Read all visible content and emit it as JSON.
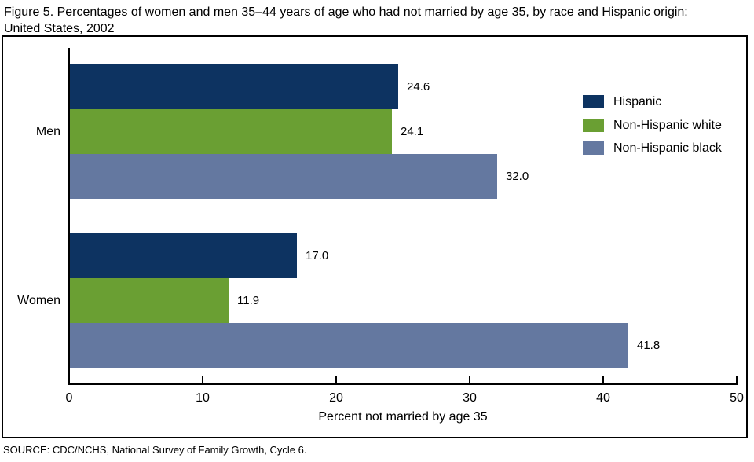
{
  "figure": {
    "title": "Figure 5. Percentages of women and men 35–44 years of age who had not married by age 35, by race and Hispanic origin: United States, 2002",
    "source": "SOURCE: CDC/NCHS, National Survey of Family Growth, Cycle 6."
  },
  "chart_data": {
    "type": "bar",
    "orientation": "horizontal",
    "categories": [
      "Men",
      "Women"
    ],
    "series": [
      {
        "name": "Hispanic",
        "color": "#0d3361",
        "values": [
          24.6,
          17.0
        ]
      },
      {
        "name": "Non-Hispanic white",
        "color": "#6a9f33",
        "values": [
          24.1,
          11.9
        ]
      },
      {
        "name": "Non-Hispanic black",
        "color": "#6478a0",
        "values": [
          32.0,
          41.8
        ]
      }
    ],
    "value_labels": {
      "Men": [
        "24.6",
        "24.1",
        "32.0"
      ],
      "Women": [
        "17.0",
        "11.9",
        "41.8"
      ]
    },
    "xlabel": "Percent not married by age 35",
    "xlim": [
      0,
      50
    ],
    "xticks": [
      0,
      10,
      20,
      30,
      40,
      50
    ],
    "grid": false,
    "legend_position": "top-right",
    "axis_color": "#000000"
  }
}
